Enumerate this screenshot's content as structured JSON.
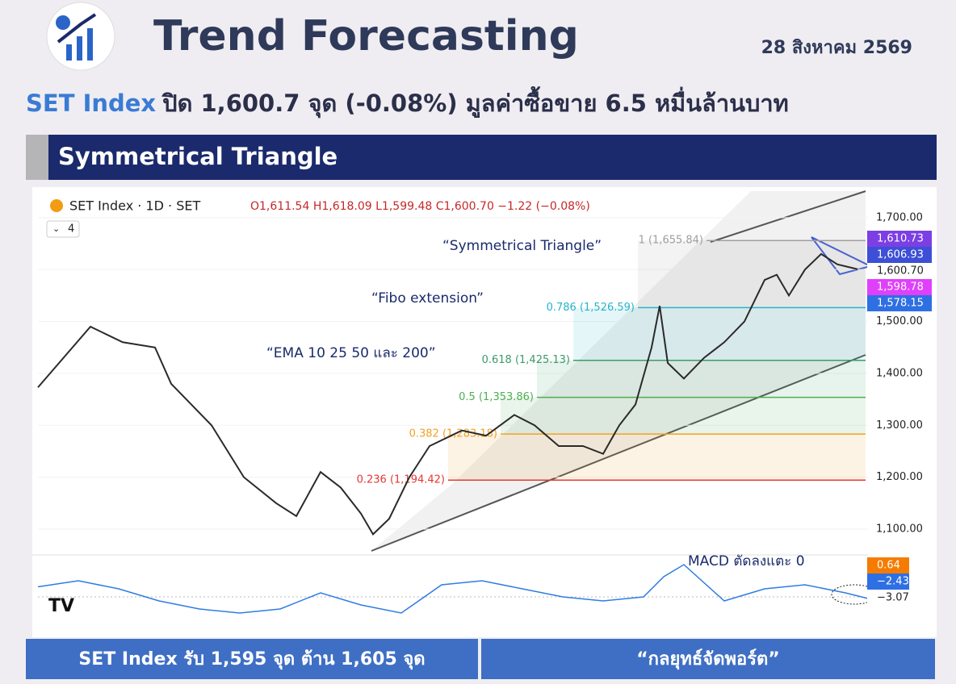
{
  "header": {
    "title": "Trend Forecasting",
    "date": "28 สิงหาคม 2569"
  },
  "headline": {
    "index": "SET Index",
    "text": "ปิด 1,600.7 จุด (-0.08%) มูลค่าซื้อขาย 6.5 หมื่นล้านบาท"
  },
  "section_title": "Symmetrical Triangle",
  "chart_data": {
    "type": "line",
    "symbol": "SET Index · 1D · SET",
    "ohlc": "O1,611.54 H1,618.09 L1,599.48 C1,600.70 −1.22 (−0.08%)",
    "collapsed_count": "4",
    "x": [
      0,
      13,
      21,
      29,
      33,
      43,
      51,
      59,
      64,
      70,
      75,
      80,
      83,
      87,
      92,
      97,
      105,
      111,
      118,
      123,
      129,
      135,
      140,
      144,
      148,
      152,
      154,
      156,
      160,
      165,
      170,
      175,
      180,
      183,
      186,
      190,
      194,
      198,
      203
    ],
    "series": [
      {
        "color": "#2a2a2a",
        "values": [
          1373,
          1490,
          1460,
          1450,
          1380,
          1300,
          1200,
          1150,
          1125,
          1210,
          1180,
          1130,
          1090,
          1120,
          1200,
          1260,
          1290,
          1280,
          1320,
          1300,
          1260,
          1260,
          1245,
          1300,
          1340,
          1450,
          1530,
          1420,
          1390,
          1430,
          1460,
          1500,
          1580,
          1590,
          1550,
          1600,
          1630,
          1610,
          1600.7
        ]
      }
    ],
    "xlim": [
      0,
      206
    ],
    "ylim": [
      1058,
      1751
    ],
    "yticks": [
      {
        "value": 1700,
        "label": "1,700.00"
      },
      {
        "value": 1600,
        "label": "1,600.00"
      },
      {
        "value": 1500,
        "label": "1,500.00"
      },
      {
        "value": 1400,
        "label": "1,400.00"
      },
      {
        "value": 1300,
        "label": "1,300.00"
      },
      {
        "value": 1200,
        "label": "1,200.00"
      },
      {
        "value": 1100,
        "label": "1,100.00"
      }
    ],
    "fib_levels": [
      {
        "value": 1655.84,
        "label": "1 (1,655.84)",
        "color": "#9e9e9e"
      },
      {
        "value": 1526.59,
        "label": "0.786 (1,526.59)",
        "color": "#26b5c9"
      },
      {
        "value": 1425.13,
        "label": "0.618 (1,425.13)",
        "color": "#3d9a6b"
      },
      {
        "value": 1353.86,
        "label": "0.5 (1,353.86)",
        "color": "#4caf50"
      },
      {
        "value": 1283.18,
        "label": "0.382 (1,283.18)",
        "color": "#f2a024"
      },
      {
        "value": 1194.42,
        "label": "0.236 (1,194.42)",
        "color": "#e53935"
      }
    ],
    "price_badges": [
      {
        "value": 1610.73,
        "label": "1,610.73",
        "color": "#7b3fe4"
      },
      {
        "value": 1606.93,
        "label": "1,606.93",
        "color": "#3d4fd6"
      },
      {
        "value": 1600.7,
        "label": "1,600.70",
        "color": "#ffffff"
      },
      {
        "value": 1598.78,
        "label": "1,598.78",
        "color": "#e040fb"
      },
      {
        "value": 1578.15,
        "label": "1,578.15",
        "color": "#2f6fe4"
      }
    ],
    "annotations": [
      "“Symmetrical Triangle”",
      "“Fibo extension”",
      "“EMA 10 25 50 และ 200”",
      "MACD ตัดลงแตะ 0"
    ],
    "macd": {
      "x": [
        0,
        10,
        20,
        30,
        40,
        50,
        60,
        70,
        80,
        90,
        100,
        110,
        120,
        130,
        140,
        150,
        155,
        160,
        170,
        180,
        190,
        200,
        206
      ],
      "values": [
        5,
        8,
        4,
        -2,
        -6,
        -8,
        -6,
        2,
        -4,
        -8,
        6,
        8,
        4,
        0,
        -2,
        0,
        10,
        16,
        -2,
        4,
        6,
        2,
        -1
      ],
      "color": "#2f7de1",
      "badges": [
        {
          "value": 0.64,
          "label": "0.64",
          "color": "#f57c00"
        },
        {
          "value": -2.43,
          "label": "−2.43",
          "color": "#2f6fe4"
        },
        {
          "value": -3.07,
          "label": "−3.07",
          "color": "#ffffff"
        }
      ]
    }
  },
  "footer": {
    "left": "SET Index รับ 1,595 จุด ต้าน 1,605 จุด",
    "right": "“กลยุทธ์จัดพอร์ต”"
  }
}
